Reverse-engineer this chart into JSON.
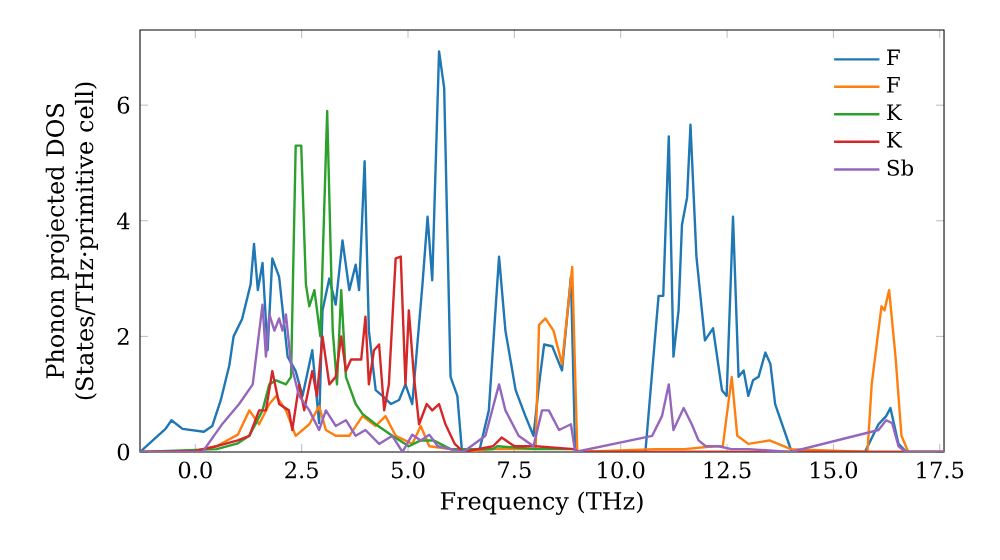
{
  "chart_data": {
    "type": "line",
    "xlabel": "Frequency (THz)",
    "ylabel": "Phonon projected DOS (States/THz·primitive cell)",
    "xlim": [
      -1.3,
      17.6
    ],
    "ylim": [
      0,
      7.3
    ],
    "xticks": [
      {
        "value": 0,
        "label": "0.0"
      },
      2.5,
      {
        "value": 5,
        "label": "5.0"
      },
      7.5,
      {
        "value": 10,
        "label": "10.0"
      },
      12.5,
      {
        "value": 15,
        "label": "15.0"
      },
      17.5
    ],
    "yticks": [
      0,
      2,
      4,
      6
    ],
    "legend": "top right",
    "marker": "none",
    "line_style": "solid",
    "series": [
      {
        "name": "F",
        "color": "#1f77b4",
        "x": [
          -1.3,
          -1.0,
          -0.7,
          -0.56,
          -0.3,
          0.2,
          0.4,
          0.6,
          0.8,
          0.9,
          1.1,
          1.3,
          1.38,
          1.47,
          1.58,
          1.7,
          1.81,
          1.97,
          2.17,
          2.36,
          2.52,
          2.75,
          2.91,
          2.99,
          3.15,
          3.3,
          3.46,
          3.62,
          3.77,
          3.85,
          3.98,
          4.08,
          4.24,
          4.4,
          4.6,
          4.79,
          4.94,
          5.1,
          5.34,
          5.46,
          5.57,
          5.73,
          5.85,
          6.0,
          6.16,
          6.27,
          6.67,
          6.9,
          7.14,
          7.29,
          7.53,
          7.76,
          7.95,
          8.08,
          8.2,
          8.39,
          8.62,
          8.83,
          8.93,
          10.58,
          10.89,
          11.0,
          11.13,
          11.24,
          11.36,
          11.44,
          11.56,
          11.64,
          11.78,
          11.98,
          12.17,
          12.38,
          12.49,
          12.64,
          12.77,
          12.89,
          13.0,
          13.11,
          13.24,
          13.4,
          13.52,
          13.63,
          14.02,
          15.74,
          16.06,
          16.24,
          16.34,
          16.53,
          16.72,
          17.6
        ],
        "values": [
          0,
          0.2,
          0.4,
          0.55,
          0.4,
          0.35,
          0.45,
          0.9,
          1.5,
          2.0,
          2.3,
          2.9,
          3.6,
          2.8,
          3.27,
          1.76,
          3.35,
          3.03,
          1.65,
          1.4,
          0.97,
          1.76,
          0.5,
          2.45,
          3.0,
          2.55,
          3.66,
          2.8,
          3.24,
          2.8,
          5.03,
          2.1,
          1.07,
          0.97,
          0.83,
          0.9,
          1.17,
          0.83,
          2.9,
          4.07,
          2.97,
          6.93,
          6.3,
          1.3,
          0.97,
          0,
          0,
          0.72,
          3.38,
          2.1,
          1.07,
          0.62,
          0.28,
          1.17,
          1.86,
          1.83,
          1.41,
          3.03,
          0,
          0,
          2.7,
          2.7,
          5.46,
          1.65,
          2.45,
          3.93,
          4.4,
          5.66,
          3.38,
          1.93,
          2.14,
          1.07,
          0.97,
          4.07,
          1.3,
          1.41,
          0.97,
          1.24,
          1.3,
          1.72,
          1.52,
          0.83,
          0,
          0,
          0.48,
          0.62,
          0.76,
          0.14,
          0,
          0
        ]
      },
      {
        "name": "F",
        "color": "#ff7f0e",
        "x": [
          -1.3,
          0.0,
          0.5,
          1.0,
          1.27,
          1.5,
          1.74,
          1.9,
          2.13,
          2.36,
          2.68,
          2.91,
          3.07,
          3.3,
          3.62,
          3.93,
          4.24,
          4.47,
          4.71,
          5.1,
          5.3,
          5.5,
          6.0,
          6.3,
          7.0,
          7.5,
          8.0,
          8.08,
          8.23,
          8.42,
          8.62,
          8.86,
          8.98,
          10.8,
          11.5,
          12.2,
          12.4,
          12.61,
          12.74,
          13.0,
          13.5,
          14.0,
          15.8,
          15.9,
          16.13,
          16.2,
          16.31,
          16.46,
          16.6,
          16.76,
          17.6
        ],
        "values": [
          0,
          0.02,
          0.1,
          0.3,
          0.72,
          0.48,
          0.83,
          0.97,
          0.72,
          0.28,
          0.48,
          0.79,
          0.38,
          0.28,
          0.28,
          0.62,
          0.45,
          0.62,
          0.28,
          0.14,
          0.45,
          0.1,
          0.05,
          0,
          0.05,
          0.05,
          0.05,
          2.2,
          2.31,
          2.1,
          1.52,
          3.2,
          0,
          0.05,
          0.05,
          0.1,
          0.1,
          1.3,
          0.28,
          0.14,
          0.2,
          0.05,
          0,
          1.17,
          2.52,
          2.45,
          2.8,
          1.65,
          0.28,
          0,
          0
        ]
      },
      {
        "name": "K",
        "color": "#2ca02c",
        "x": [
          -1.3,
          0.5,
          1.0,
          1.27,
          1.58,
          1.74,
          1.9,
          2.13,
          2.25,
          2.36,
          2.49,
          2.6,
          2.68,
          2.8,
          2.94,
          3.1,
          3.23,
          3.33,
          3.43,
          3.54,
          3.77,
          3.93,
          4.24,
          4.63,
          5.02,
          5.3,
          5.6,
          6.0,
          7.0,
          7.1,
          8.0,
          8.9,
          9.0,
          17.6
        ],
        "values": [
          0,
          0.05,
          0.15,
          0.28,
          0.72,
          1.17,
          1.24,
          1.17,
          1.3,
          5.3,
          5.3,
          2.9,
          2.52,
          2.8,
          2.0,
          5.9,
          2.1,
          1.17,
          2.8,
          1.3,
          0.83,
          0.66,
          0.48,
          0.28,
          0.1,
          0.2,
          0.2,
          0.05,
          0.05,
          0.1,
          0.05,
          0.05,
          0,
          0
        ]
      },
      {
        "name": "K",
        "color": "#d62728",
        "x": [
          -1.3,
          0.0,
          0.5,
          1.0,
          1.27,
          1.5,
          1.66,
          1.81,
          1.97,
          2.2,
          2.28,
          2.44,
          2.56,
          2.75,
          2.86,
          2.99,
          3.15,
          3.3,
          3.43,
          3.54,
          3.66,
          3.77,
          3.9,
          4.0,
          4.08,
          4.2,
          4.32,
          4.44,
          4.55,
          4.71,
          4.83,
          4.94,
          5.02,
          5.14,
          5.26,
          5.44,
          5.57,
          5.73,
          5.88,
          6.1,
          6.3,
          7.0,
          7.2,
          7.5,
          8.0,
          8.9,
          9.0,
          17.6
        ],
        "values": [
          0,
          0.02,
          0.1,
          0.2,
          0.28,
          0.72,
          0.72,
          1.4,
          0.83,
          0.72,
          0.38,
          1.17,
          0.72,
          1.4,
          0.97,
          2.0,
          1.17,
          1.3,
          2.0,
          1.4,
          1.6,
          1.6,
          1.6,
          2.34,
          1.17,
          1.76,
          1.86,
          0.72,
          1.17,
          3.35,
          3.38,
          1.17,
          2.45,
          1.3,
          0.48,
          0.83,
          0.72,
          0.83,
          0.48,
          0.14,
          0,
          0.1,
          0.25,
          0.1,
          0.1,
          0.05,
          0,
          0
        ]
      },
      {
        "name": "Sb",
        "color": "#9467bd",
        "x": [
          -1.3,
          0.17,
          0.64,
          1.03,
          1.35,
          1.58,
          1.66,
          1.74,
          1.86,
          1.97,
          2.05,
          2.13,
          2.25,
          2.44,
          2.68,
          2.91,
          3.07,
          3.3,
          3.54,
          3.77,
          4.0,
          4.32,
          4.63,
          4.87,
          5.1,
          5.3,
          5.5,
          5.7,
          6.0,
          6.3,
          6.82,
          7.14,
          7.29,
          7.6,
          7.95,
          8.15,
          8.31,
          8.55,
          8.83,
          8.93,
          10.74,
          10.97,
          11.13,
          11.24,
          11.48,
          11.67,
          11.83,
          12.0,
          12.3,
          12.6,
          13.0,
          14.0,
          16.06,
          16.24,
          16.38,
          16.53,
          16.7,
          17.6
        ],
        "values": [
          0,
          0,
          0.49,
          0.83,
          1.17,
          2.55,
          1.65,
          2.38,
          2.1,
          2.31,
          2.1,
          2.38,
          1.52,
          0.97,
          0.72,
          0.38,
          0.72,
          0.45,
          0.55,
          0.28,
          0.38,
          0.14,
          0.28,
          0,
          0.3,
          0.2,
          0.3,
          0.1,
          0.05,
          0,
          0.28,
          1.17,
          0.72,
          0.28,
          0.1,
          0.72,
          0.72,
          0.38,
          0.48,
          0,
          0.28,
          0.62,
          1.17,
          0.38,
          0.76,
          0.48,
          0.2,
          0.1,
          0.1,
          0.05,
          0.05,
          0,
          0.38,
          0.55,
          0.5,
          0.1,
          0,
          0
        ]
      }
    ]
  }
}
